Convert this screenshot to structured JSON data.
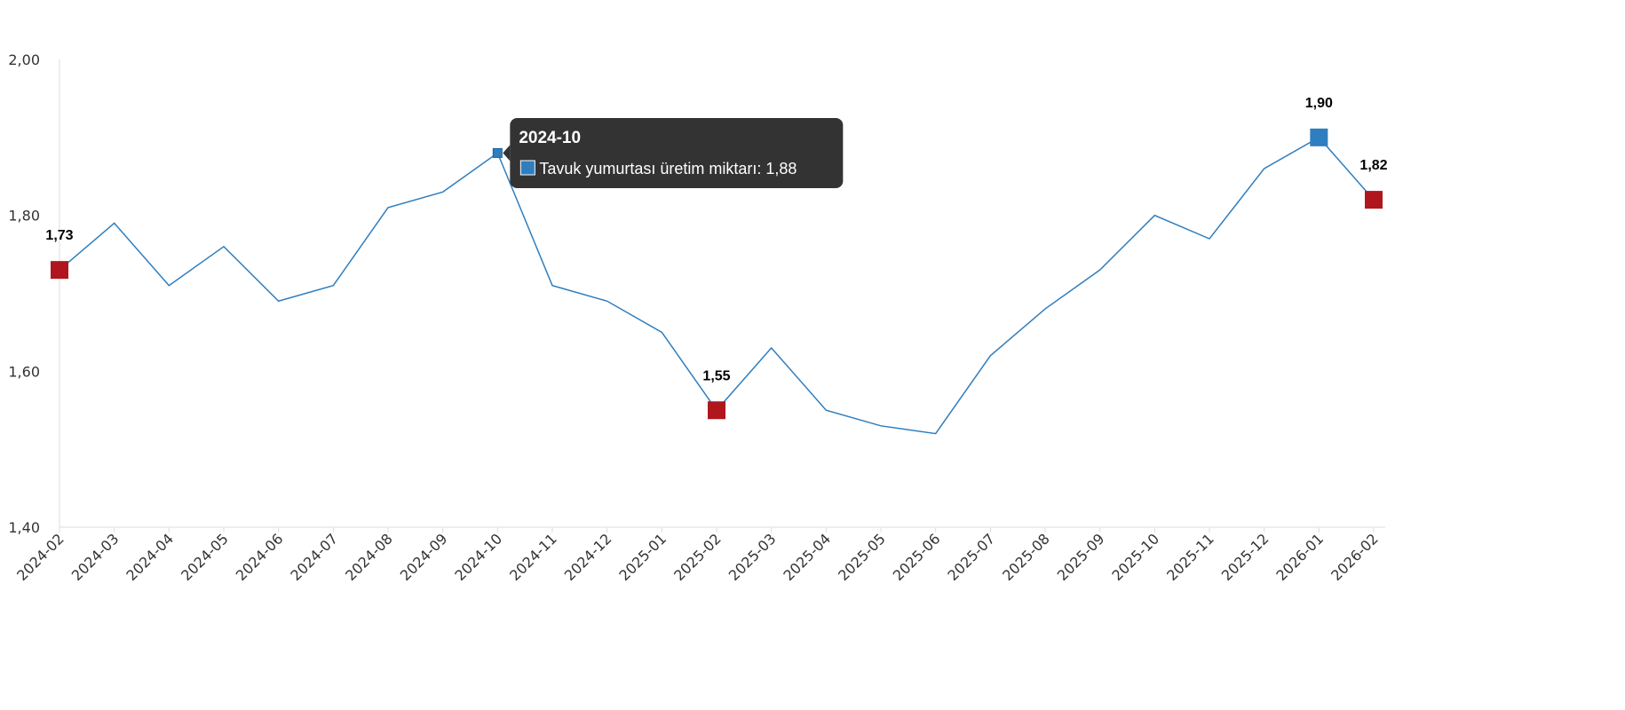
{
  "chart_data": {
    "type": "line",
    "title": "",
    "xlabel": "",
    "ylabel": "",
    "ylim": [
      1.4,
      2.0
    ],
    "yticks": [
      "1,40",
      "1,60",
      "1,80",
      "2,00"
    ],
    "grid": false,
    "categories": [
      "2024-02",
      "2024-03",
      "2024-04",
      "2024-05",
      "2024-06",
      "2024-07",
      "2024-08",
      "2024-09",
      "2024-10",
      "2024-11",
      "2024-12",
      "2025-01",
      "2025-02",
      "2025-03",
      "2025-04",
      "2025-05",
      "2025-06",
      "2025-07",
      "2025-08",
      "2025-09",
      "2025-10",
      "2025-11",
      "2025-12",
      "2026-01",
      "2026-02"
    ],
    "series": [
      {
        "name": "Tavuk yumurtası üretim miktarı",
        "color": "#2f7ebf",
        "values": [
          1.73,
          1.79,
          1.71,
          1.76,
          1.69,
          1.71,
          1.81,
          1.83,
          1.88,
          1.71,
          1.69,
          1.65,
          1.55,
          1.63,
          1.55,
          1.53,
          1.52,
          1.62,
          1.68,
          1.73,
          1.8,
          1.77,
          1.86,
          1.9,
          1.82
        ]
      }
    ],
    "highlighted_points": [
      {
        "category": "2024-02",
        "label": "1,73",
        "color": "#b0161e"
      },
      {
        "category": "2025-02",
        "label": "1,55",
        "color": "#b0161e"
      },
      {
        "category": "2026-01",
        "label": "1,90",
        "color": "#2f7ebf"
      },
      {
        "category": "2026-02",
        "label": "1,82",
        "color": "#b0161e"
      }
    ],
    "tooltip": {
      "category": "2024-10",
      "title": "2024-10",
      "text": "Tavuk yumurtası üretim miktarı: 1,88",
      "background": "#333333"
    }
  }
}
